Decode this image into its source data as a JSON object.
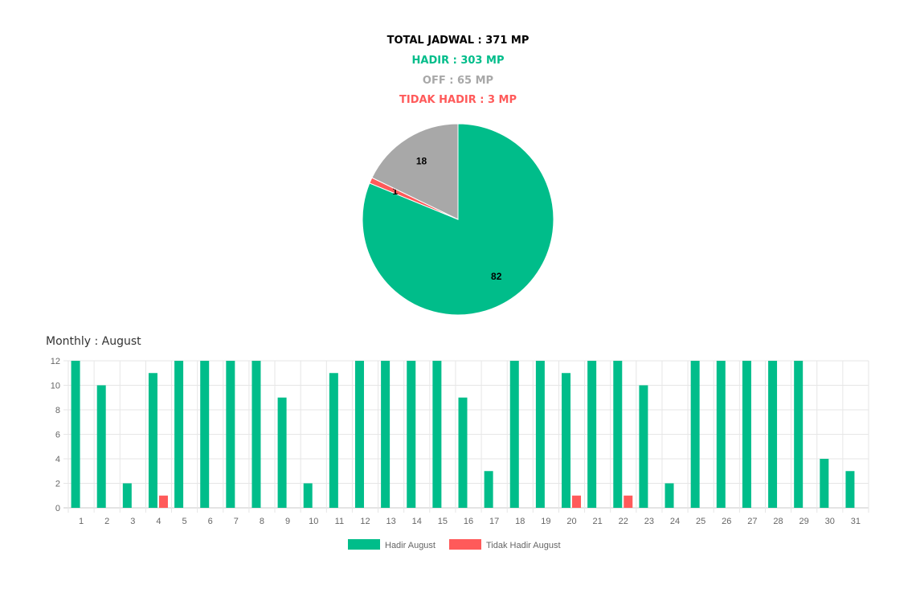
{
  "summary": {
    "total": "TOTAL JADWAL : 371 MP",
    "hadir": "HADIR : 303 MP",
    "off": "OFF : 65 MP",
    "tidak_hadir": "TIDAK HADIR : 3 MP"
  },
  "colors": {
    "hadir": "#00bd8a",
    "off": "#a8a8a8",
    "tidak_hadir": "#ff5a5a",
    "total": "#000000"
  },
  "chart_data": [
    {
      "type": "pie",
      "slices": [
        {
          "value": 82,
          "label": "82",
          "color": "#00bd8a"
        },
        {
          "value": 1,
          "label": "1",
          "color": "#ff5a5a"
        },
        {
          "value": 18,
          "label": "18",
          "color": "#a8a8a8"
        }
      ]
    },
    {
      "type": "bar",
      "title": "Monthly : August",
      "categories": [
        "1",
        "2",
        "3",
        "4",
        "5",
        "6",
        "7",
        "8",
        "9",
        "10",
        "11",
        "12",
        "13",
        "14",
        "15",
        "16",
        "17",
        "18",
        "19",
        "20",
        "21",
        "22",
        "23",
        "24",
        "25",
        "26",
        "27",
        "28",
        "29",
        "30",
        "31"
      ],
      "series": [
        {
          "name": "Hadir August",
          "color": "#00bd8a",
          "values": [
            12,
            10,
            2,
            11,
            12,
            12,
            12,
            12,
            9,
            2,
            11,
            12,
            12,
            12,
            12,
            9,
            3,
            12,
            12,
            11,
            12,
            12,
            10,
            2,
            12,
            12,
            12,
            12,
            12,
            4,
            3
          ]
        },
        {
          "name": "Tidak Hadir August",
          "color": "#ff5a5a",
          "values": [
            0,
            0,
            0,
            1,
            0,
            0,
            0,
            0,
            0,
            0,
            0,
            0,
            0,
            0,
            0,
            0,
            0,
            0,
            0,
            1,
            0,
            1,
            0,
            0,
            0,
            0,
            0,
            0,
            0,
            0,
            0
          ]
        }
      ],
      "ylim": [
        0,
        12
      ],
      "yticks": [
        0,
        2,
        4,
        6,
        8,
        10,
        12
      ],
      "grid": true,
      "legend": "bottom"
    }
  ]
}
